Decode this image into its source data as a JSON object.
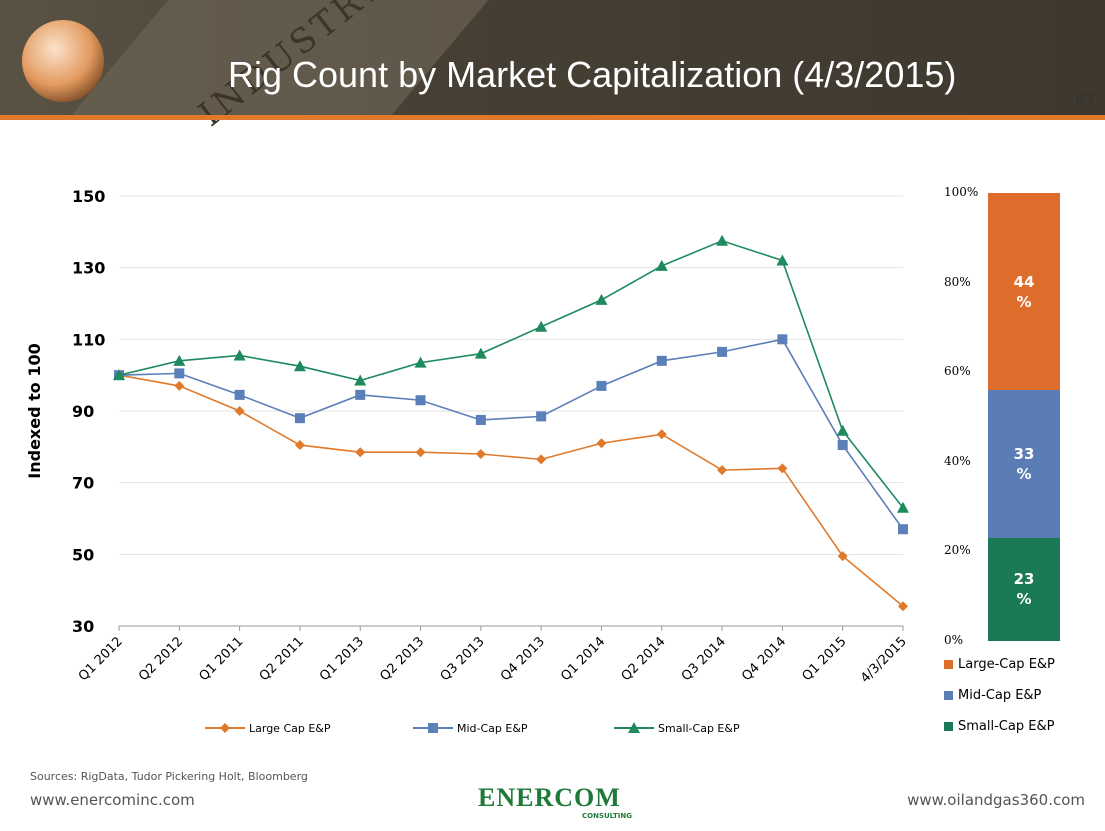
{
  "header": {
    "title": "Rig Count by Market Capitalization (4/3/2015)",
    "page_number": "67",
    "background_text": "INDUSTRY"
  },
  "footer": {
    "sources": "Sources: RigData, Tudor Pickering Holt, Bloomberg",
    "url_left": "www.enercominc.com",
    "url_right": "www.oilandgas360.com",
    "logo": "ENERCOM",
    "logo_sub": "CONSULTING"
  },
  "chart_data": [
    {
      "type": "line",
      "ylabel": "Indexed to 100",
      "ylim": [
        30,
        150
      ],
      "yticks": [
        30,
        50,
        70,
        90,
        110,
        130,
        150
      ],
      "grid": true,
      "legend": "bottom",
      "categories": [
        "Q1 2012",
        "Q2 2012",
        "Q1 2011",
        "Q2 2011",
        "Q1 2013",
        "Q2 2013",
        "Q3 2013",
        "Q4 2013",
        "Q1 2014",
        "Q2 2014",
        "Q3 2014",
        "Q4 2014",
        "Q1 2015",
        "4/3/2015"
      ],
      "series": [
        {
          "name": "Large Cap E&P",
          "color": "#e07a2a",
          "marker": "diamond",
          "values": [
            100,
            97,
            90,
            80.5,
            78.5,
            78.5,
            78,
            76.5,
            81,
            83.5,
            73.5,
            74,
            49.5,
            35.5
          ]
        },
        {
          "name": "Mid-Cap E&P",
          "color": "#5b7fb8",
          "marker": "square",
          "values": [
            100,
            100.5,
            94.5,
            88,
            94.5,
            93,
            87.5,
            88.5,
            97,
            104,
            106.5,
            110,
            80.5,
            57
          ]
        },
        {
          "name": "Small-Cap E&P",
          "color": "#1e8a5e",
          "marker": "triangle",
          "values": [
            100,
            104,
            105.5,
            102.5,
            98.5,
            103.5,
            106,
            113.5,
            121,
            130.5,
            137.5,
            132,
            84.5,
            63
          ]
        }
      ]
    },
    {
      "type": "bar",
      "stacked": true,
      "ylim": [
        0,
        100
      ],
      "yticks": [
        "0%",
        "20%",
        "40%",
        "60%",
        "80%",
        "100%"
      ],
      "legend": "bottom",
      "series": [
        {
          "name": "Small-Cap E&P",
          "color": "#1a7a55",
          "value": 23,
          "label": "23 %"
        },
        {
          "name": "Mid-Cap E&P",
          "color": "#5a7db5",
          "value": 33,
          "label": "33 %"
        },
        {
          "name": "Large-Cap E&P",
          "color": "#de6c2a",
          "value": 44,
          "label": "44 %"
        }
      ],
      "legend_order": [
        "Large-Cap E&P",
        "Mid-Cap E&P",
        "Small-Cap E&P"
      ]
    }
  ]
}
